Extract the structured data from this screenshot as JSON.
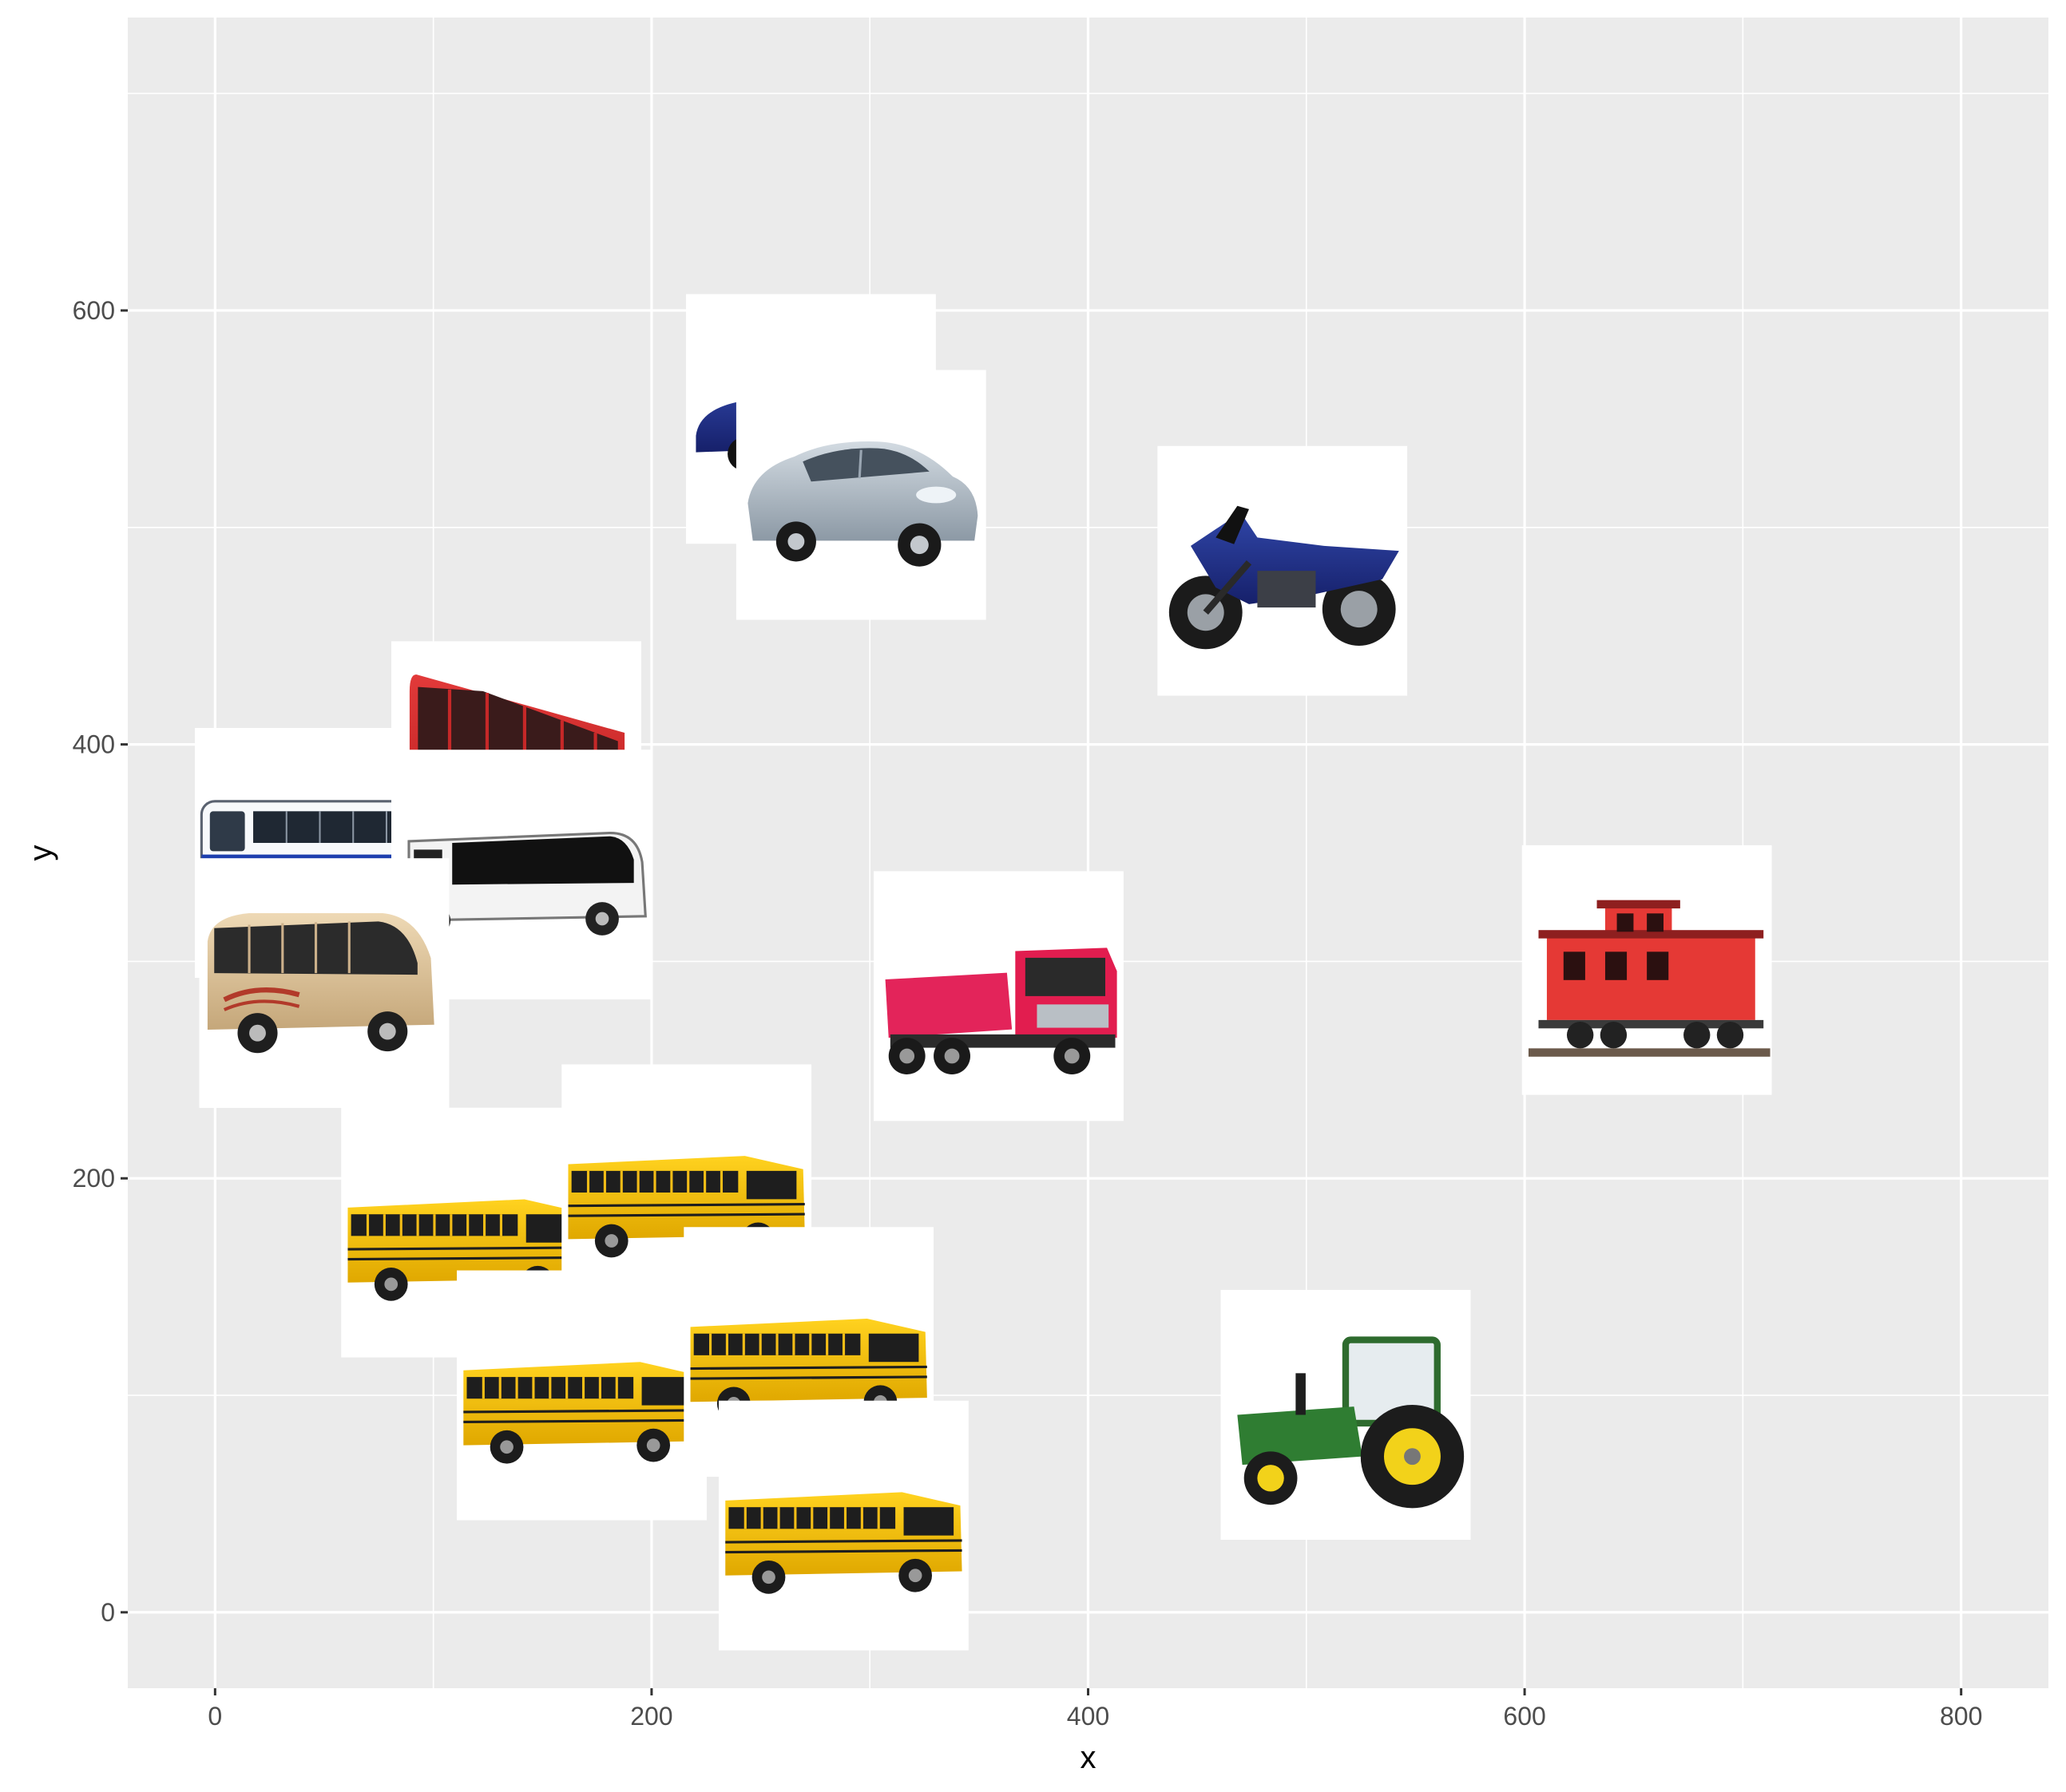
{
  "chart_data": {
    "type": "scatter",
    "xlabel": "x",
    "ylabel": "y",
    "xlim": [
      -40,
      840
    ],
    "ylim": [
      -35,
      735
    ],
    "x_ticks": [
      0,
      200,
      400,
      600,
      800
    ],
    "y_ticks": [
      0,
      200,
      400,
      600
    ],
    "grid": true,
    "panel_background": "#ebebeb",
    "grid_color": "#ffffff",
    "points": [
      {
        "x": 48,
        "y": 350,
        "icon": "blue-white-coach-bus"
      },
      {
        "x": 138,
        "y": 390,
        "icon": "red-double-decker-bus"
      },
      {
        "x": 143,
        "y": 340,
        "icon": "white-coach-bus"
      },
      {
        "x": 50,
        "y": 290,
        "icon": "beige-minibus"
      },
      {
        "x": 115,
        "y": 175,
        "icon": "yellow-school-bus-flat-front"
      },
      {
        "x": 216,
        "y": 195,
        "icon": "yellow-school-bus-angled"
      },
      {
        "x": 168,
        "y": 100,
        "icon": "yellow-school-bus-front-view"
      },
      {
        "x": 272,
        "y": 120,
        "icon": "yellow-school-bus-rear-view"
      },
      {
        "x": 288,
        "y": 40,
        "icon": "yellow-school-bus-long"
      },
      {
        "x": 273,
        "y": 550,
        "icon": "blue-minivan"
      },
      {
        "x": 296,
        "y": 515,
        "icon": "silver-hatchback-car"
      },
      {
        "x": 359,
        "y": 284,
        "icon": "red-dump-truck"
      },
      {
        "x": 489,
        "y": 480,
        "icon": "blue-motorcycle"
      },
      {
        "x": 656,
        "y": 296,
        "icon": "red-caboose"
      },
      {
        "x": 518,
        "y": 91,
        "icon": "green-tractor"
      }
    ]
  }
}
